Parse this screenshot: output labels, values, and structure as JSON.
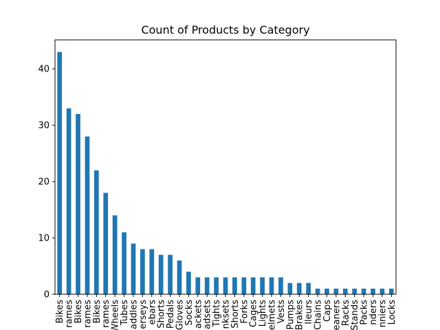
{
  "chart_data": {
    "type": "bar",
    "title": "Count of Products by Category",
    "xlabel": "",
    "ylabel": "",
    "ylim": [
      0,
      45.15
    ],
    "yticks": [
      0,
      10,
      20,
      30,
      40
    ],
    "bar_color": "#1f77b4",
    "grid": false,
    "categories": [
      "Bikes",
      "rames",
      "Bikes",
      "rames",
      "Bikes",
      "rames",
      "Wheels",
      "Tubes",
      "addles",
      "erseys",
      "ebars",
      "Shorts",
      "Pedals",
      "Gloves",
      "Socks",
      "ackets",
      "adsets",
      "Tights",
      "nksets",
      "Shorts",
      "Forks",
      "Cages",
      "Lights",
      "elmets",
      "Vests",
      "Pumps",
      "Brakes",
      "lleurs",
      "Chains",
      "Caps",
      "eaners",
      "Racks",
      "Stands",
      "Packs",
      "nders",
      "nniers",
      "Locks"
    ],
    "values": [
      43,
      33,
      32,
      28,
      22,
      18,
      14,
      11,
      9,
      8,
      8,
      7,
      7,
      6,
      4,
      3,
      3,
      3,
      3,
      3,
      3,
      3,
      3,
      3,
      3,
      2,
      2,
      2,
      1,
      1,
      1,
      1,
      1,
      1,
      1,
      1,
      1
    ]
  }
}
